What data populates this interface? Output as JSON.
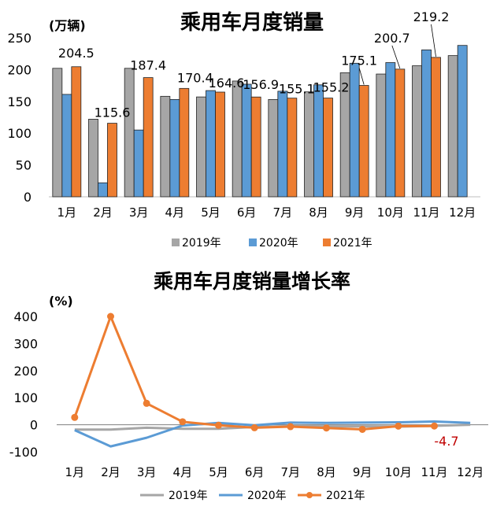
{
  "colors": {
    "2019": "#a6a6a6",
    "2020": "#5b9bd5",
    "2021": "#ed7d31",
    "bar_edge": "#222222",
    "annotation_neg": "#c00000"
  },
  "chart_data": [
    {
      "type": "bar",
      "title": "乘用车月度销量",
      "ylabel": "(万辆)",
      "ylim": [
        0,
        250
      ],
      "yticks": [
        "0",
        "50",
        "100",
        "150",
        "200",
        "250"
      ],
      "categories": [
        "1月",
        "2月",
        "3月",
        "4月",
        "5月",
        "6月",
        "7月",
        "8月",
        "9月",
        "10月",
        "11月",
        "12月"
      ],
      "series": [
        {
          "name": "2019年",
          "values": [
            202,
            122,
            202,
            158,
            157,
            182,
            153,
            165,
            195,
            193,
            206,
            222
          ]
        },
        {
          "name": "2020年",
          "values": [
            161,
            22,
            105,
            153,
            167,
            177,
            166,
            176,
            210,
            211,
            231,
            238
          ]
        },
        {
          "name": "2021年",
          "values": [
            204.5,
            115.6,
            187.4,
            170.4,
            164.6,
            156.9,
            155.1,
            155.2,
            175.1,
            200.7,
            219.2,
            null
          ]
        }
      ],
      "data_labels": [
        "204.5",
        "115.6",
        "187.4",
        "170.4",
        "164.6",
        "156.9",
        "155.1",
        "155.2",
        "175.1",
        "200.7",
        "219.2",
        ""
      ],
      "legend_position": "bottom"
    },
    {
      "type": "line",
      "title": "乘用车月度销量增长率",
      "ylabel": "(%)",
      "ylim": [
        -100,
        400
      ],
      "yticks": [
        "-100",
        "0",
        "100",
        "200",
        "300",
        "400"
      ],
      "categories": [
        "1月",
        "2月",
        "3月",
        "4月",
        "5月",
        "6月",
        "7月",
        "8月",
        "9月",
        "10月",
        "11月",
        "12月"
      ],
      "series": [
        {
          "name": "2019年",
          "values": [
            -18,
            -18,
            -11,
            -15,
            -15,
            -8,
            -5,
            -6,
            -6,
            -7,
            -4,
            0
          ]
        },
        {
          "name": "2020年",
          "values": [
            -20,
            -80,
            -48,
            -3,
            7,
            -2,
            8,
            7,
            8,
            9,
            12,
            7
          ]
        },
        {
          "name": "2021年",
          "values": [
            27,
            400,
            79,
            11,
            -2,
            -11,
            -7,
            -12,
            -17,
            -5,
            -4.7,
            null
          ]
        }
      ],
      "annotation": "-4.7",
      "legend_position": "bottom"
    }
  ]
}
